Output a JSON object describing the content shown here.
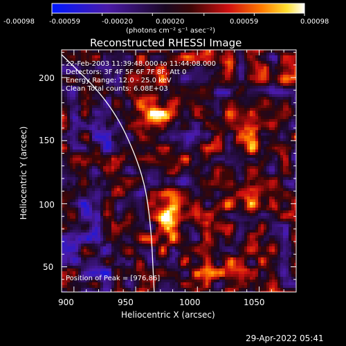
{
  "chart_data": {
    "type": "heatmap",
    "title": "Reconstructed RHESSI Image",
    "xlabel": "Heliocentric X (arcsec)",
    "ylabel": "Heliocentric Y (arcsec)",
    "xlim": [
      890,
      1080
    ],
    "ylim": [
      30,
      222
    ],
    "x_ticks": [
      900,
      950,
      1000,
      1050
    ],
    "y_ticks": [
      50,
      100,
      150,
      200
    ],
    "colorbar": {
      "min": -0.00098,
      "max": 0.00098,
      "ticks": [
        "-0.00098",
        "-0.00059",
        "-0.00020",
        "0.00020",
        "0.00059",
        "0.00098"
      ],
      "unit": "(photons cm⁻² s⁻¹ asec⁻²)",
      "colormap": "blue-purple-black-red-orange-yellow-white"
    },
    "annotations": [
      "22-Feb-2003 11:39:48.000 to 11:44:08.000",
      "Detectors: 3F 4F 5F 6F 7F 8F, Att 0",
      "Energy Range: 12.0 - 25.0 keV",
      "Clean     Total counts: 6.08E+03"
    ],
    "peak_label": "Position of Peak = [976,86]",
    "peak": {
      "x": 976,
      "y": 86,
      "value": 0.00098
    },
    "sources": [
      {
        "x": 976,
        "y": 86,
        "value": 0.00098
      },
      {
        "x": 971,
        "y": 169,
        "value": 0.00064
      },
      {
        "x": 963,
        "y": 186,
        "value": 0.00048
      },
      {
        "x": 1045,
        "y": 150,
        "value": 0.0004
      },
      {
        "x": 1010,
        "y": 60,
        "value": 0.00025
      },
      {
        "x": 1040,
        "y": 100,
        "value": 0.0003
      }
    ],
    "limb_curve": [
      [
        886,
        222
      ],
      [
        930,
        180
      ],
      [
        954,
        130
      ],
      [
        962,
        90
      ],
      [
        965,
        30
      ]
    ]
  },
  "footer": {
    "timestamp": "29-Apr-2022 05:41"
  },
  "colors": {
    "background": "#000000",
    "text": "#ffffff",
    "limb": "#ffffff"
  }
}
